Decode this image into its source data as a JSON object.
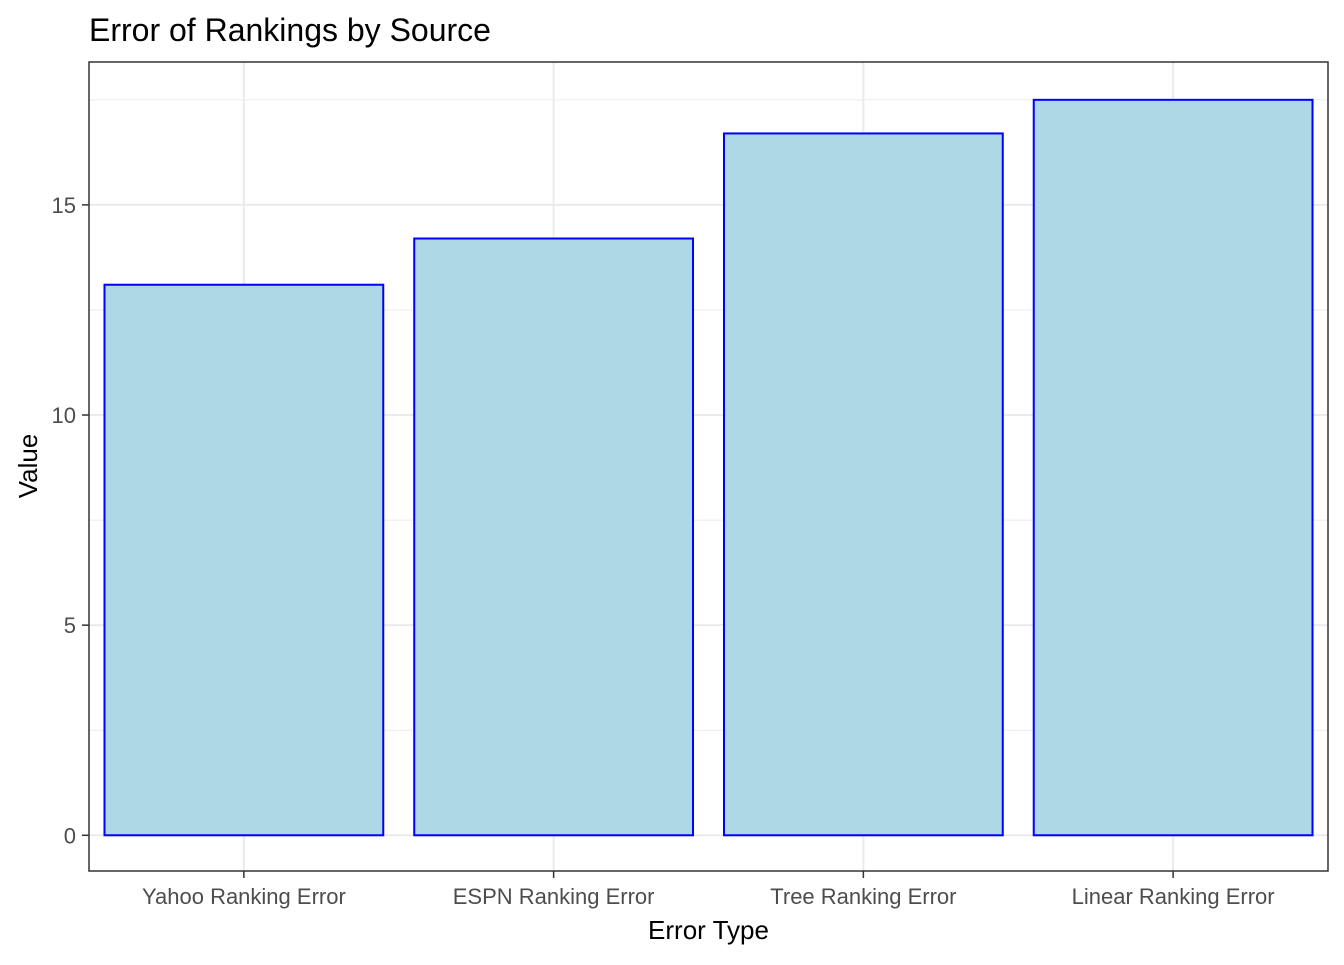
{
  "chart_data": {
    "type": "bar",
    "title": "Error of Rankings by Source",
    "xlabel": "Error Type",
    "ylabel": "Value",
    "categories": [
      "Yahoo Ranking Error",
      "ESPN Ranking Error",
      "Tree Ranking Error",
      "Linear Ranking Error"
    ],
    "values": [
      13.1,
      14.2,
      16.7,
      17.5
    ],
    "ylim": [
      -0.85,
      18.4
    ],
    "yticks": [
      0,
      5,
      10,
      15
    ],
    "ytick_labels": [
      "0",
      "5",
      "10",
      "15"
    ],
    "grid": true,
    "bar_fill": "#add8e6",
    "bar_stroke": "#0000ff",
    "panel_border": "#333333",
    "grid_color": "#ebebeb"
  }
}
